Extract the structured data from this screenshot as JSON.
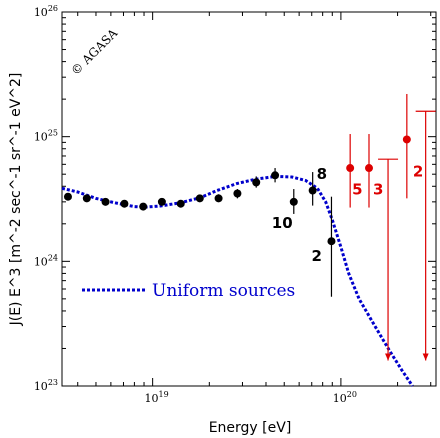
{
  "chart_data": {
    "type": "scatter",
    "xlabel": "Energy [eV]",
    "ylabel": "J(E) E^3 [m^-2 sec^-1 sr^-1 eV^2]",
    "xscale": "log",
    "yscale": "log",
    "xlim": [
      3.3e+18,
      3.2e+20
    ],
    "ylim": [
      1e+23,
      1e+26
    ],
    "x_ticks": [
      {
        "value": 1e+19,
        "base": "10",
        "exp": "19"
      },
      {
        "value": 1e+20,
        "base": "10",
        "exp": "20"
      }
    ],
    "y_ticks": [
      {
        "value": 1e+23,
        "base": "10",
        "exp": "23"
      },
      {
        "value": 1e+24,
        "base": "10",
        "exp": "24"
      },
      {
        "value": 1e+25,
        "base": "10",
        "exp": "25"
      },
      {
        "value": 1e+26,
        "base": "10",
        "exp": "26"
      }
    ],
    "copyright": "© AGASA",
    "colors": {
      "black_points": "#000000",
      "red_points": "#dd0000",
      "curve": "#0000cc"
    },
    "series": [
      {
        "color": "#000000",
        "points": [
          {
            "x": 3.55e+18,
            "y": 3.3e+24,
            "yerr_low": 3.2e+24,
            "yerr_high": 3.4e+24
          },
          {
            "x": 4.47e+18,
            "y": 3.2e+24,
            "yerr_low": 3.1e+24,
            "yerr_high": 3.3e+24
          },
          {
            "x": 5.62e+18,
            "y": 3e+24,
            "yerr_low": 2.9e+24,
            "yerr_high": 3.1e+24
          },
          {
            "x": 7.08e+18,
            "y": 2.9e+24,
            "yerr_low": 2.8e+24,
            "yerr_high": 3e+24
          },
          {
            "x": 8.91e+18,
            "y": 2.75e+24,
            "yerr_low": 2.65e+24,
            "yerr_high": 2.85e+24
          },
          {
            "x": 1.12e+19,
            "y": 3e+24,
            "yerr_low": 2.9e+24,
            "yerr_high": 3.1e+24
          },
          {
            "x": 1.41e+19,
            "y": 2.9e+24,
            "yerr_low": 2.78e+24,
            "yerr_high": 3.02e+24
          },
          {
            "x": 1.78e+19,
            "y": 3.2e+24,
            "yerr_low": 3.05e+24,
            "yerr_high": 3.35e+24
          },
          {
            "x": 2.24e+19,
            "y": 3.2e+24,
            "yerr_low": 3e+24,
            "yerr_high": 3.45e+24
          },
          {
            "x": 2.82e+19,
            "y": 3.5e+24,
            "yerr_low": 3.2e+24,
            "yerr_high": 3.8e+24
          },
          {
            "x": 3.55e+19,
            "y": 4.3e+24,
            "yerr_low": 3.9e+24,
            "yerr_high": 4.8e+24
          },
          {
            "x": 4.47e+19,
            "y": 4.9e+24,
            "yerr_low": 4.3e+24,
            "yerr_high": 5.6e+24
          },
          {
            "x": 5.62e+19,
            "y": 3e+24,
            "yerr_low": 2.4e+24,
            "yerr_high": 3.8e+24
          },
          {
            "x": 7.08e+19,
            "y": 3.7e+24,
            "yerr_low": 2.8e+24,
            "yerr_high": 5.2e+24
          },
          {
            "x": 8.91e+19,
            "y": 1.45e+24,
            "yerr_low": 5.2e+23,
            "yerr_high": 3.3e+24
          }
        ]
      },
      {
        "color": "#dd0000",
        "points": [
          {
            "x": 1.12e+20,
            "y": 5.6e+24,
            "yerr_low": 2.7e+24,
            "yerr_high": 1.05e+25
          },
          {
            "x": 1.41e+20,
            "y": 5.6e+24,
            "yerr_low": 2.7e+24,
            "yerr_high": 1.05e+25
          },
          {
            "x": 2.24e+20,
            "y": 9.5e+24,
            "yerr_low": 3.2e+24,
            "yerr_high": 2.2e+25
          }
        ]
      }
    ],
    "upper_limits": [
      {
        "x": 1.78e+20,
        "y": 6.6e+24,
        "arrow_to": 1.6e+23,
        "color": "#dd0000"
      },
      {
        "x": 2.82e+20,
        "y": 1.6e+25,
        "arrow_to": 1.6e+23,
        "color": "#dd0000"
      }
    ],
    "event_counts": [
      {
        "text": "10",
        "x": 5.62e+19,
        "y": 3e+24,
        "color": "#000000"
      },
      {
        "text": "8",
        "x": 7.08e+19,
        "y": 4.75e+24,
        "color": "#000000"
      },
      {
        "text": "2",
        "x": 8.91e+19,
        "y": 1.45e+24,
        "color": "#000000"
      },
      {
        "text": "5",
        "x": 1.12e+20,
        "y": 4.8e+24,
        "color": "#dd0000"
      },
      {
        "text": "3",
        "x": 1.41e+20,
        "y": 4.8e+24,
        "color": "#dd0000"
      },
      {
        "text": "2",
        "x": 2.24e+20,
        "y": 8e+24,
        "color": "#dd0000"
      }
    ],
    "curve": {
      "name": "Uniform sources",
      "color": "#0000cc",
      "style": "dotted",
      "points": [
        [
          3.3e+18,
          3.85e+24
        ],
        [
          4e+18,
          3.6e+24
        ],
        [
          5e+18,
          3.2e+24
        ],
        [
          6.3e+18,
          2.95e+24
        ],
        [
          8e+18,
          2.75e+24
        ],
        [
          9e+18,
          2.72e+24
        ],
        [
          1.1e+19,
          2.78e+24
        ],
        [
          1.4e+19,
          2.95e+24
        ],
        [
          1.8e+19,
          3.25e+24
        ],
        [
          2.2e+19,
          3.7e+24
        ],
        [
          2.8e+19,
          4.2e+24
        ],
        [
          3.5e+19,
          4.55e+24
        ],
        [
          4.5e+19,
          4.8e+24
        ],
        [
          5.5e+19,
          4.75e+24
        ],
        [
          6.5e+19,
          4.45e+24
        ],
        [
          7.5e+19,
          3.85e+24
        ],
        [
          8.3e+19,
          3e+24
        ],
        [
          9e+19,
          2.15e+24
        ],
        [
          1e+20,
          1.3e+24
        ],
        [
          1.1e+20,
          8e+23
        ],
        [
          1.25e+20,
          5e+23
        ],
        [
          1.5e+20,
          3.1e+23
        ],
        [
          1.8e+20,
          1.95e+23
        ],
        [
          2.1e+20,
          1.35e+23
        ],
        [
          2.4e+20,
          1e+23
        ]
      ]
    },
    "legend": {
      "label": "Uniform sources",
      "placement": "lower-left"
    }
  }
}
